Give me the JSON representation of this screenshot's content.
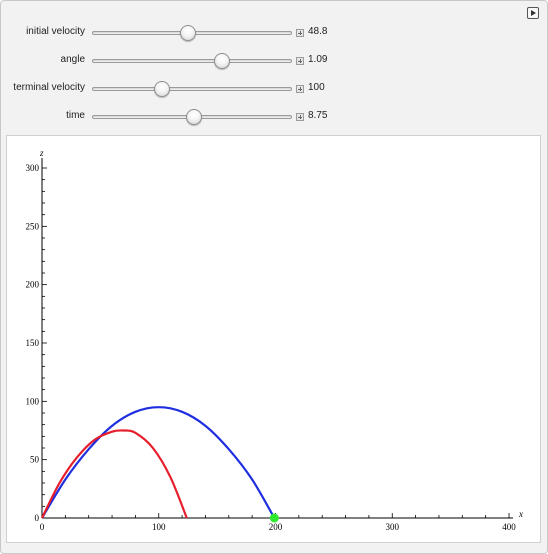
{
  "controls": [
    {
      "id": "initial-velocity",
      "label": "initial velocity",
      "value": "48.8",
      "fraction": 0.48
    },
    {
      "id": "angle",
      "label": "angle",
      "value": "1.09",
      "fraction": 0.65
    },
    {
      "id": "terminal-velocity",
      "label": "terminal velocity",
      "value": "100",
      "fraction": 0.35
    },
    {
      "id": "time",
      "label": "time",
      "value": "8.75",
      "fraction": 0.51
    }
  ],
  "play_icon": "play-triangle-icon",
  "chart_data": {
    "type": "line",
    "xlabel": "x",
    "ylabel": "z",
    "xlim": [
      0,
      400
    ],
    "ylim": [
      0,
      300
    ],
    "x_ticks": [
      "0",
      "100",
      "200",
      "300",
      "400"
    ],
    "y_ticks": [
      "0",
      "50",
      "100",
      "150",
      "200",
      "250",
      "300"
    ],
    "series": [
      {
        "color": "#1f2ee0",
        "x": [
          0,
          20,
          40,
          60,
          80,
          100,
          120,
          140,
          160,
          180,
          199
        ],
        "y": [
          0,
          33,
          59,
          79,
          91,
          95,
          91,
          79,
          59,
          33,
          0
        ]
      },
      {
        "color": "#e61e2b",
        "x": [
          0,
          15,
          30,
          45,
          60,
          70,
          80,
          95,
          110,
          124
        ],
        "y": [
          0,
          30,
          52,
          67,
          74,
          75,
          73,
          60,
          35,
          0
        ]
      }
    ],
    "marker": {
      "x": 199,
      "y": 0,
      "color": "#2ee82e"
    },
    "grid": false
  }
}
